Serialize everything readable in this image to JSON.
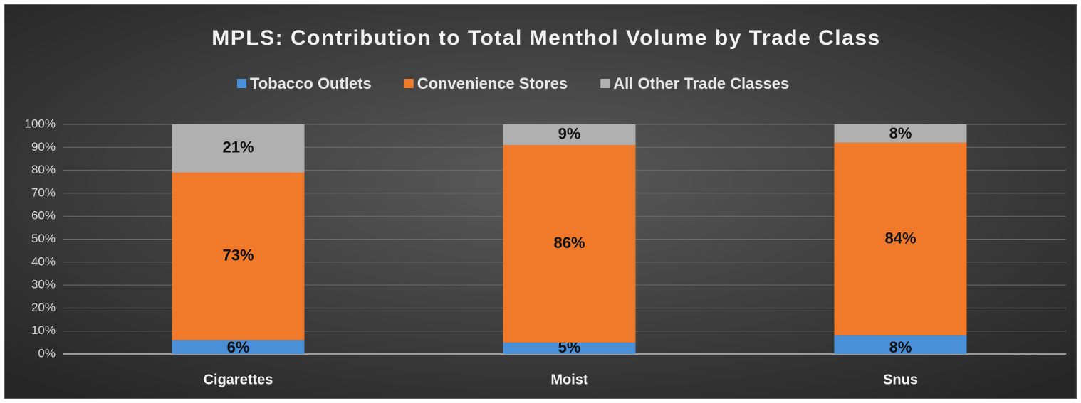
{
  "chart_data": {
    "type": "stacked_bar",
    "title": "MPLS: Contribution to Total Menthol Volume by Trade Class",
    "categories": [
      "Cigarettes",
      "Moist",
      "Snus"
    ],
    "series": [
      {
        "name": "Tobacco Outlets",
        "color": "#4a90d9",
        "values": [
          6,
          5,
          8
        ],
        "value_labels": [
          "6%",
          "5%",
          "8%"
        ]
      },
      {
        "name": "Convenience Stores",
        "color": "#f07a2a",
        "values": [
          73,
          86,
          84
        ],
        "value_labels": [
          "73%",
          "86%",
          "84%"
        ]
      },
      {
        "name": "All Other Trade Classes",
        "color": "#b0b0b0",
        "values": [
          21,
          9,
          8
        ],
        "value_labels": [
          "21%",
          "9%",
          "8%"
        ]
      }
    ],
    "ylim": [
      0,
      100
    ],
    "yticks": [
      {
        "value": 0,
        "label": "0%"
      },
      {
        "value": 10,
        "label": "10%"
      },
      {
        "value": 20,
        "label": "20%"
      },
      {
        "value": 30,
        "label": "30%"
      },
      {
        "value": 40,
        "label": "40%"
      },
      {
        "value": 50,
        "label": "50%"
      },
      {
        "value": 60,
        "label": "60%"
      },
      {
        "value": 70,
        "label": "70%"
      },
      {
        "value": 80,
        "label": "80%"
      },
      {
        "value": 90,
        "label": "90%"
      },
      {
        "value": 100,
        "label": "100%"
      }
    ],
    "grid": true,
    "legend": "top"
  }
}
